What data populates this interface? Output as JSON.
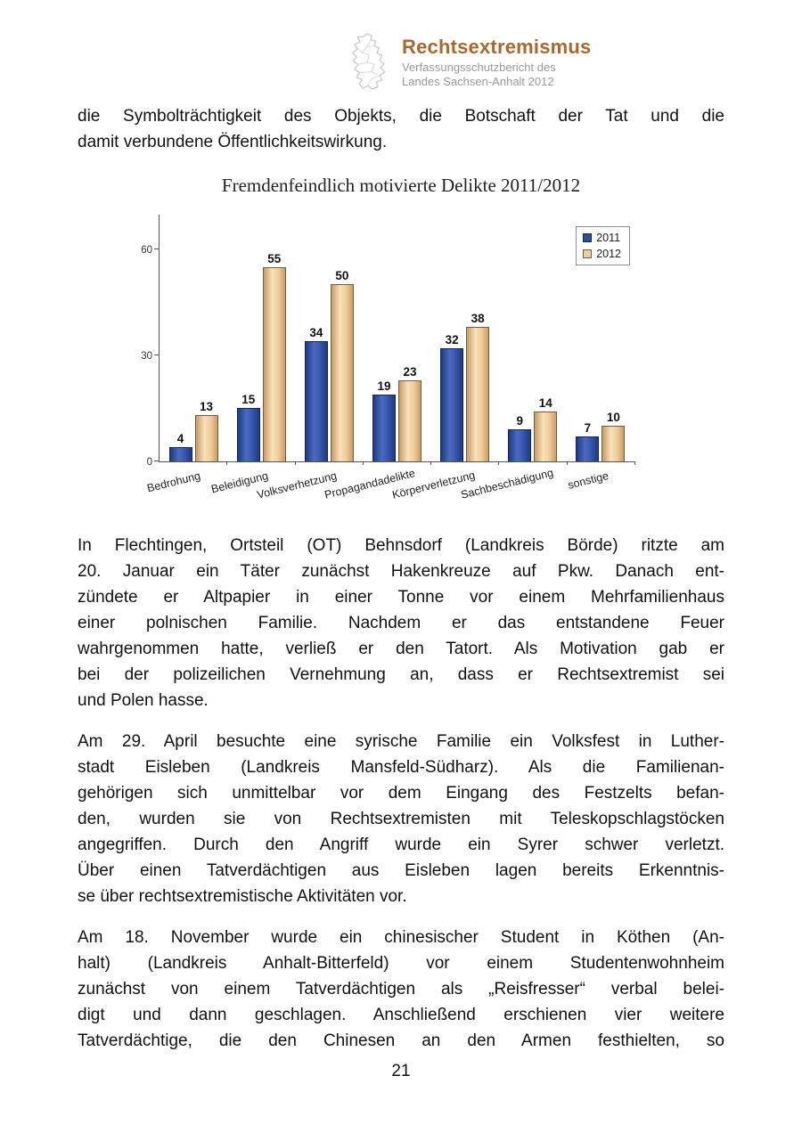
{
  "header": {
    "title": "Rechtsextremismus",
    "subtitle_line1": "Verfassungsschutzbericht des",
    "subtitle_line2": "Landes Sachsen-Anhalt 2012"
  },
  "colors": {
    "header_title": "#a8682e",
    "header_subtitle": "#9a9a9a",
    "logo_outline": "#c6c6c6",
    "bar_2011": "#2d4fa0",
    "bar_2011_border": "#16245c",
    "bar_2012": "#eccda0",
    "bar_2012_border": "#6e6046",
    "axis": "#555555"
  },
  "paragraphs": [
    {
      "justify_last": false,
      "lines": [
        "die Symbolträchtigkeit des Objekts, die Botschaft der Tat und die",
        "damit verbundene Öffentlichkeitswirkung."
      ]
    },
    {
      "justify_last": false,
      "lines": [
        "In Flechtingen, Ortsteil (OT) Behnsdorf (Landkreis Börde) ritzte am",
        "20. Januar ein Täter zunächst Hakenkreuze auf Pkw. Danach ent-",
        "zündete er Altpapier in einer Tonne vor einem Mehrfamilienhaus",
        "einer polnischen Familie. Nachdem er das entstandene Feuer",
        "wahrgenommen hatte, verließ er den Tatort. Als Motivation gab er",
        "bei der polizeilichen Vernehmung an, dass er Rechtsextremist sei",
        "und Polen hasse."
      ]
    },
    {
      "justify_last": false,
      "lines": [
        "Am 29. April besuchte eine syrische Familie ein Volksfest in Luther-",
        "stadt Eisleben (Landkreis Mansfeld-Südharz). Als die Familienan-",
        "gehörigen sich unmittelbar vor dem Eingang des Festzelts befan-",
        "den, wurden sie von Rechtsextremisten mit Teleskopschlagstöcken",
        "angegriffen. Durch den Angriff wurde ein Syrer schwer verletzt.",
        "Über einen Tatverdächtigen aus Eisleben lagen bereits Erkenntnis-",
        "se über rechtsextremistische Aktivitäten vor."
      ]
    },
    {
      "justify_last": true,
      "lines": [
        "Am 18. November wurde ein chinesischer Student in Köthen (An-",
        "halt) (Landkreis Anhalt-Bitterfeld) vor einem Studentenwohnheim",
        "zunächst von einem Tatverdächtigen als „Reisfresser“ verbal belei-",
        "digt und dann geschlagen. Anschließend erschienen vier weitere",
        "Tatverdächtige, die den Chinesen an den Armen festhielten, so"
      ]
    }
  ],
  "chart_data": {
    "type": "bar",
    "title": "Fremdenfeindlich motivierte Delikte 2011/2012",
    "categories": [
      "Bedrohung",
      "Beleidigung",
      "Volksverhetzung",
      "Propagandadelikte",
      "Körperverletzung",
      "Sachbeschädigung",
      "sonstige"
    ],
    "series": [
      {
        "name": "2011",
        "values": [
          4,
          15,
          34,
          19,
          32,
          9,
          7
        ],
        "color": "#2d4fa0"
      },
      {
        "name": "2012",
        "values": [
          13,
          55,
          50,
          23,
          38,
          14,
          10
        ],
        "color": "#eccda0"
      }
    ],
    "xlabel": "",
    "ylabel": "",
    "ylim": [
      0,
      70
    ],
    "yticks": [
      0,
      30,
      60
    ],
    "grid": false,
    "legend_position": "top-right",
    "value_labels": true
  },
  "footer": {
    "page_number": "21"
  }
}
